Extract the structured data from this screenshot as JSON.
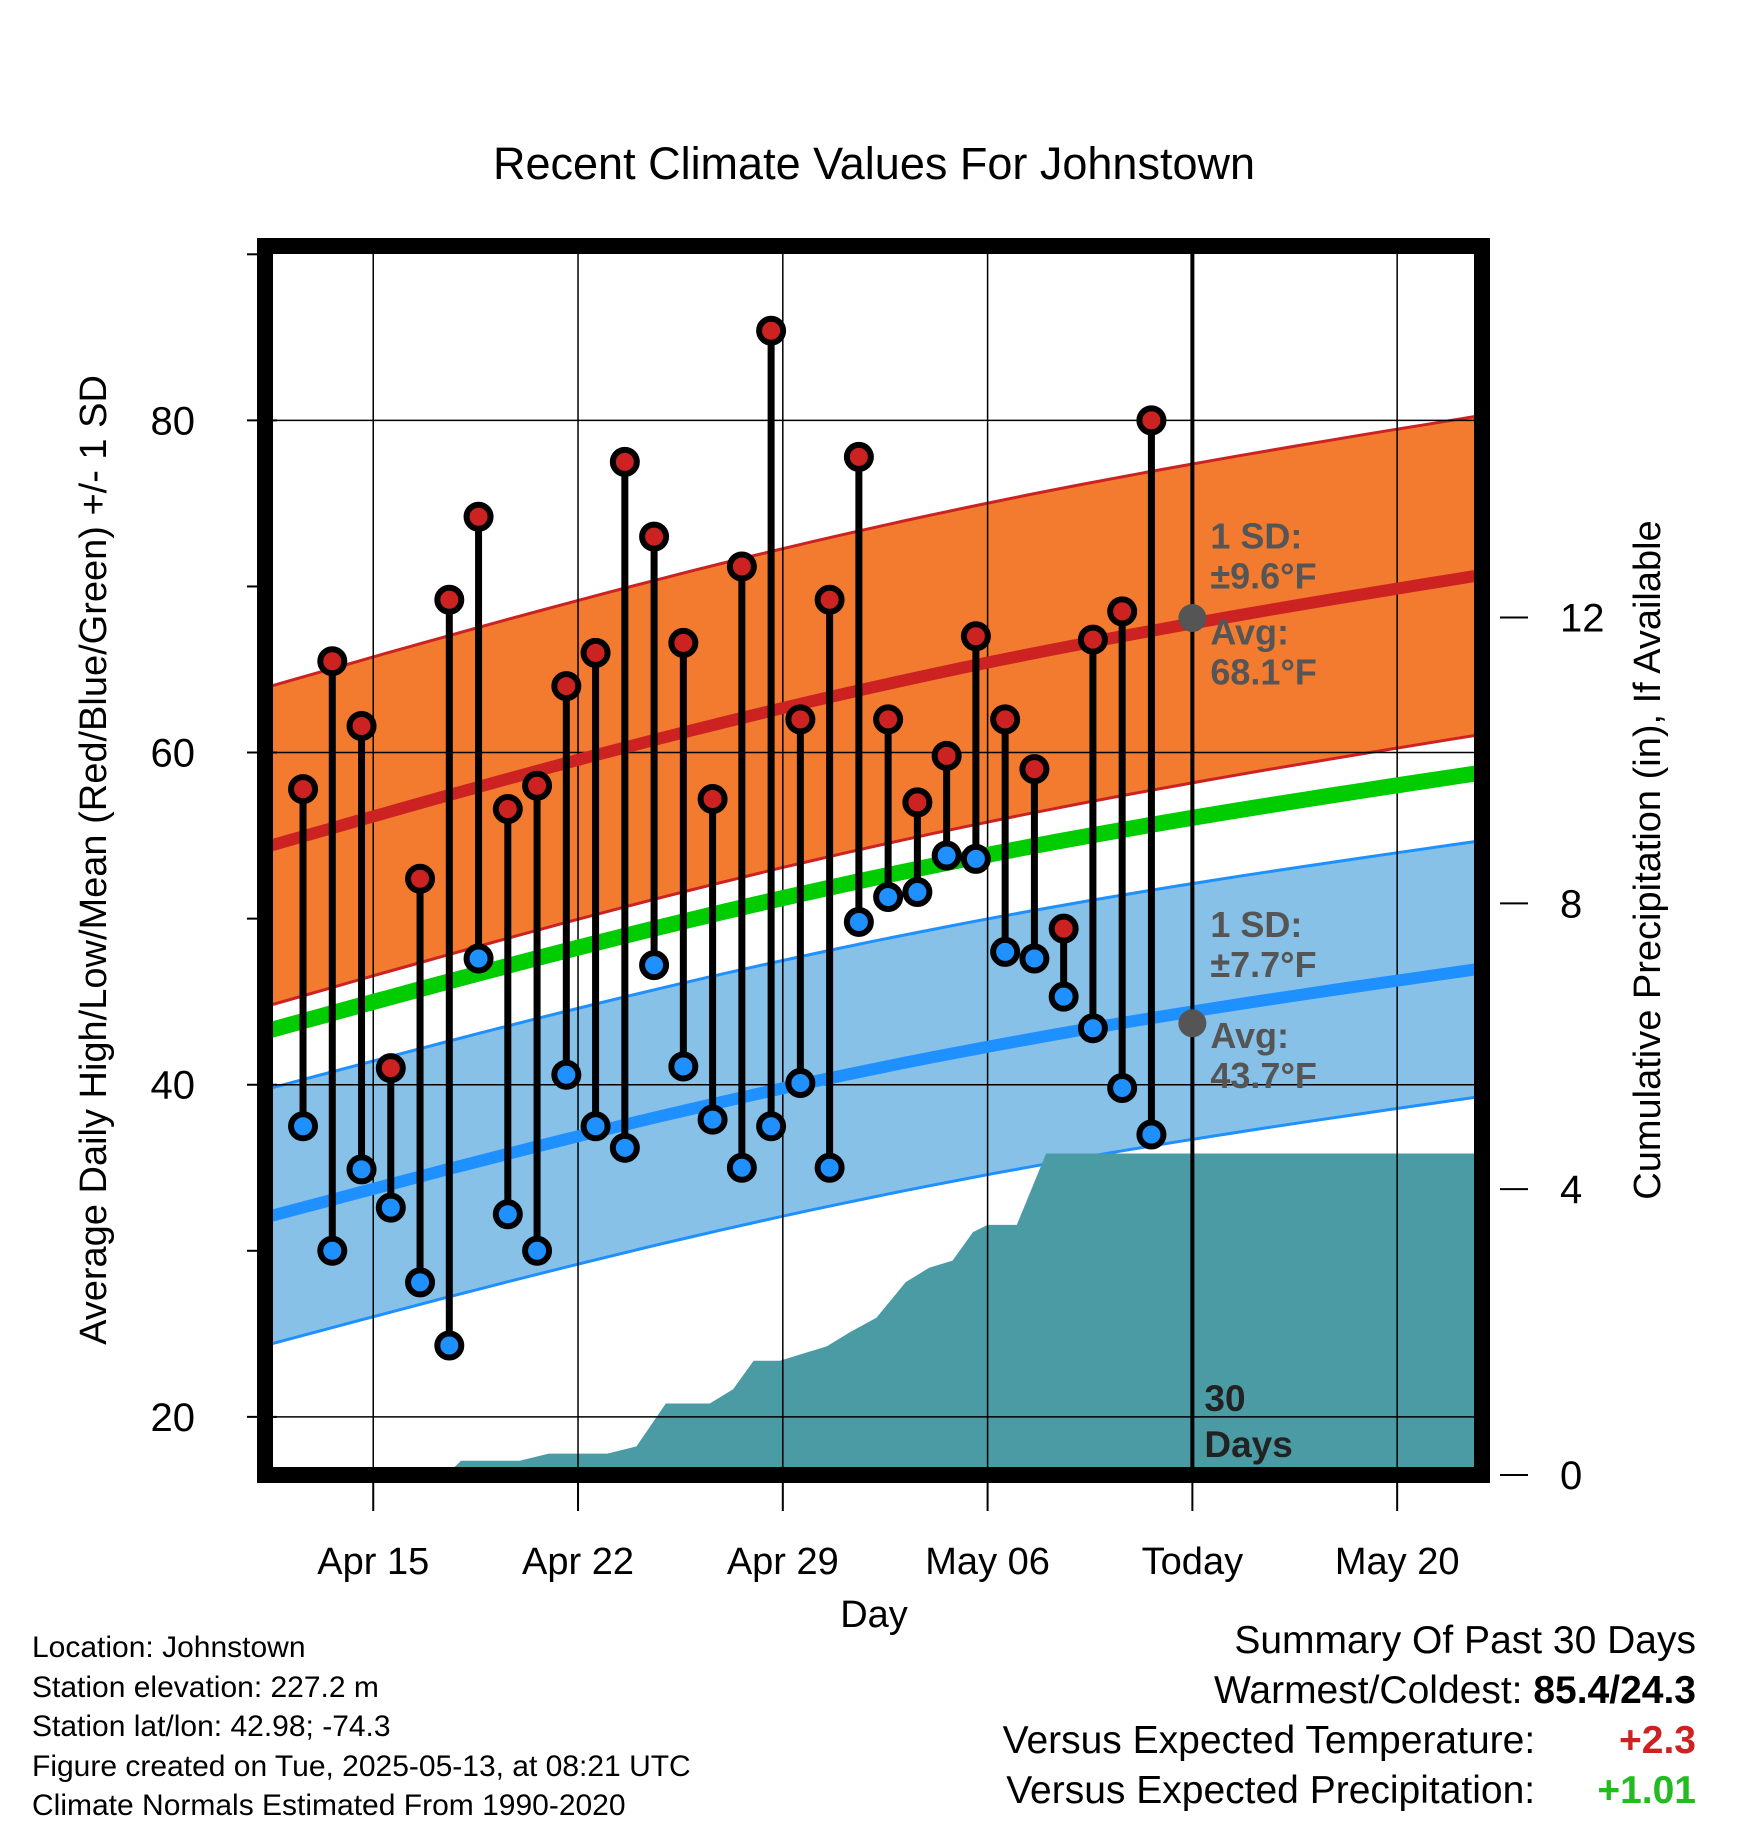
{
  "chart_data": {
    "type": "line",
    "title": "Recent Climate Values For Johnstown",
    "xlabel": "Day",
    "ylabel": "Average Daily High/Low/Mean (Red/Blue/Green) +/- 1 SD",
    "y2label": "Cumulative Precipitation (in), If Available",
    "x_domain_days_from_apr12": [
      -0.7,
      40.9
    ],
    "ylim": [
      16.5,
      90.5
    ],
    "y2lim": [
      0,
      17.2
    ],
    "y_ticks": [
      20,
      40,
      60,
      80
    ],
    "y2_ticks": [
      0,
      4,
      8,
      12
    ],
    "x_ticks": [
      {
        "day": 3,
        "label": "Apr 15"
      },
      {
        "day": 10,
        "label": "Apr 22"
      },
      {
        "day": 17,
        "label": "Apr 29"
      },
      {
        "day": 24,
        "label": "May 06"
      },
      {
        "day": 31,
        "label": "Today"
      },
      {
        "day": 38,
        "label": "May 20"
      }
    ],
    "today_day": 31,
    "window_label": "30\nDays",
    "series": [
      {
        "name": "High",
        "color": "#cc2222",
        "x": [
          0.6,
          1.6,
          2.6,
          3.6,
          4.6,
          5.6,
          6.6,
          7.6,
          8.6,
          9.6,
          10.6,
          11.6,
          12.6,
          13.6,
          14.6,
          15.6,
          16.6,
          17.6,
          18.6,
          19.6,
          20.6,
          21.6,
          22.6,
          23.6,
          24.6,
          25.6,
          26.6,
          27.6,
          28.6,
          29.6
        ],
        "values": [
          57.8,
          65.5,
          61.6,
          41.0,
          52.4,
          69.2,
          74.2,
          56.6,
          58.0,
          64.0,
          66.0,
          77.5,
          73.0,
          66.6,
          57.2,
          71.2,
          85.4,
          62.0,
          69.2,
          77.8,
          62.0,
          57.0,
          59.8,
          67.0,
          62.0,
          59.0,
          49.4,
          66.8,
          68.5,
          80.0
        ]
      },
      {
        "name": "Low",
        "color": "#1e90ff",
        "x": [
          0.6,
          1.6,
          2.6,
          3.6,
          4.6,
          5.6,
          6.6,
          7.6,
          8.6,
          9.6,
          10.6,
          11.6,
          12.6,
          13.6,
          14.6,
          15.6,
          16.6,
          17.6,
          18.6,
          19.6,
          20.6,
          21.6,
          22.6,
          23.6,
          24.6,
          25.6,
          26.6,
          27.6,
          28.6,
          29.6
        ],
        "values": [
          37.5,
          30.0,
          34.9,
          32.6,
          28.1,
          24.3,
          47.6,
          32.2,
          30.0,
          40.6,
          37.5,
          36.2,
          47.2,
          41.1,
          37.9,
          35.0,
          37.5,
          40.1,
          35.0,
          49.8,
          51.3,
          51.6,
          53.8,
          53.6,
          48.0,
          47.6,
          45.3,
          43.4,
          39.8,
          37.0
        ]
      }
    ],
    "normals": {
      "x": [
        -0.7,
        40.9
      ],
      "mean_high": [
        54.3,
        70.7
      ],
      "high_sd": 9.6,
      "mean_low": [
        32.0,
        47.0
      ],
      "low_sd": 7.7,
      "mean": [
        43.2,
        58.8
      ]
    },
    "precip": {
      "color": "#4b9ba5",
      "x": [
        -0.7,
        5.5,
        6.0,
        7.2,
        8.0,
        9.0,
        10.0,
        11.0,
        12.0,
        13.0,
        13.5,
        14.5,
        15.3,
        16.0,
        16.9,
        17.7,
        18.5,
        19.3,
        20.2,
        21.2,
        22.0,
        22.8,
        23.5,
        24.0,
        25.0,
        26.0,
        27.0,
        28.0,
        29.0,
        30.0,
        31.0,
        40.9
      ],
      "values": [
        0,
        0,
        0.2,
        0.2,
        0.2,
        0.3,
        0.3,
        0.3,
        0.4,
        1.0,
        1.0,
        1.0,
        1.2,
        1.6,
        1.6,
        1.7,
        1.8,
        2.0,
        2.2,
        2.7,
        2.9,
        3.0,
        3.4,
        3.5,
        3.5,
        4.5,
        4.5,
        4.5,
        4.5,
        4.5,
        4.5,
        4.5
      ]
    },
    "annotations": {
      "high_sd": "1 SD:\n±9.6°F",
      "high_avg": "Avg:\n68.1°F",
      "high_avg_value": 68.1,
      "low_sd": "1 SD:\n±7.7°F",
      "low_avg": "Avg:\n43.7°F",
      "low_avg_value": 43.7
    },
    "grid": true,
    "legend": "none",
    "colors": {
      "high_band": "#f27b2f",
      "high_line": "#cc2222",
      "low_band": "#87c1e8",
      "low_line": "#1e90ff",
      "mean_line": "#00cc00",
      "annotation_text": "#555555"
    }
  },
  "meta": {
    "location": "Location: Johnstown",
    "elevation": "Station elevation: 227.2 m",
    "latlon": "Station lat/lon: 42.98; -74.3",
    "created": "Figure created on Tue, 2025-05-13, at 08:21 UTC",
    "normals": "Climate Normals Estimated From 1990-2020"
  },
  "summary": {
    "title": "Summary Of Past 30 Days",
    "warmest_label": "Warmest/Coldest:",
    "warmest_value": "85.4/24.3",
    "vs_temp_label": "Versus Expected Temperature:",
    "vs_temp_value": "+2.3",
    "vs_precip_label": "Versus Expected Precipitation:",
    "vs_precip_value": "+1.01"
  }
}
